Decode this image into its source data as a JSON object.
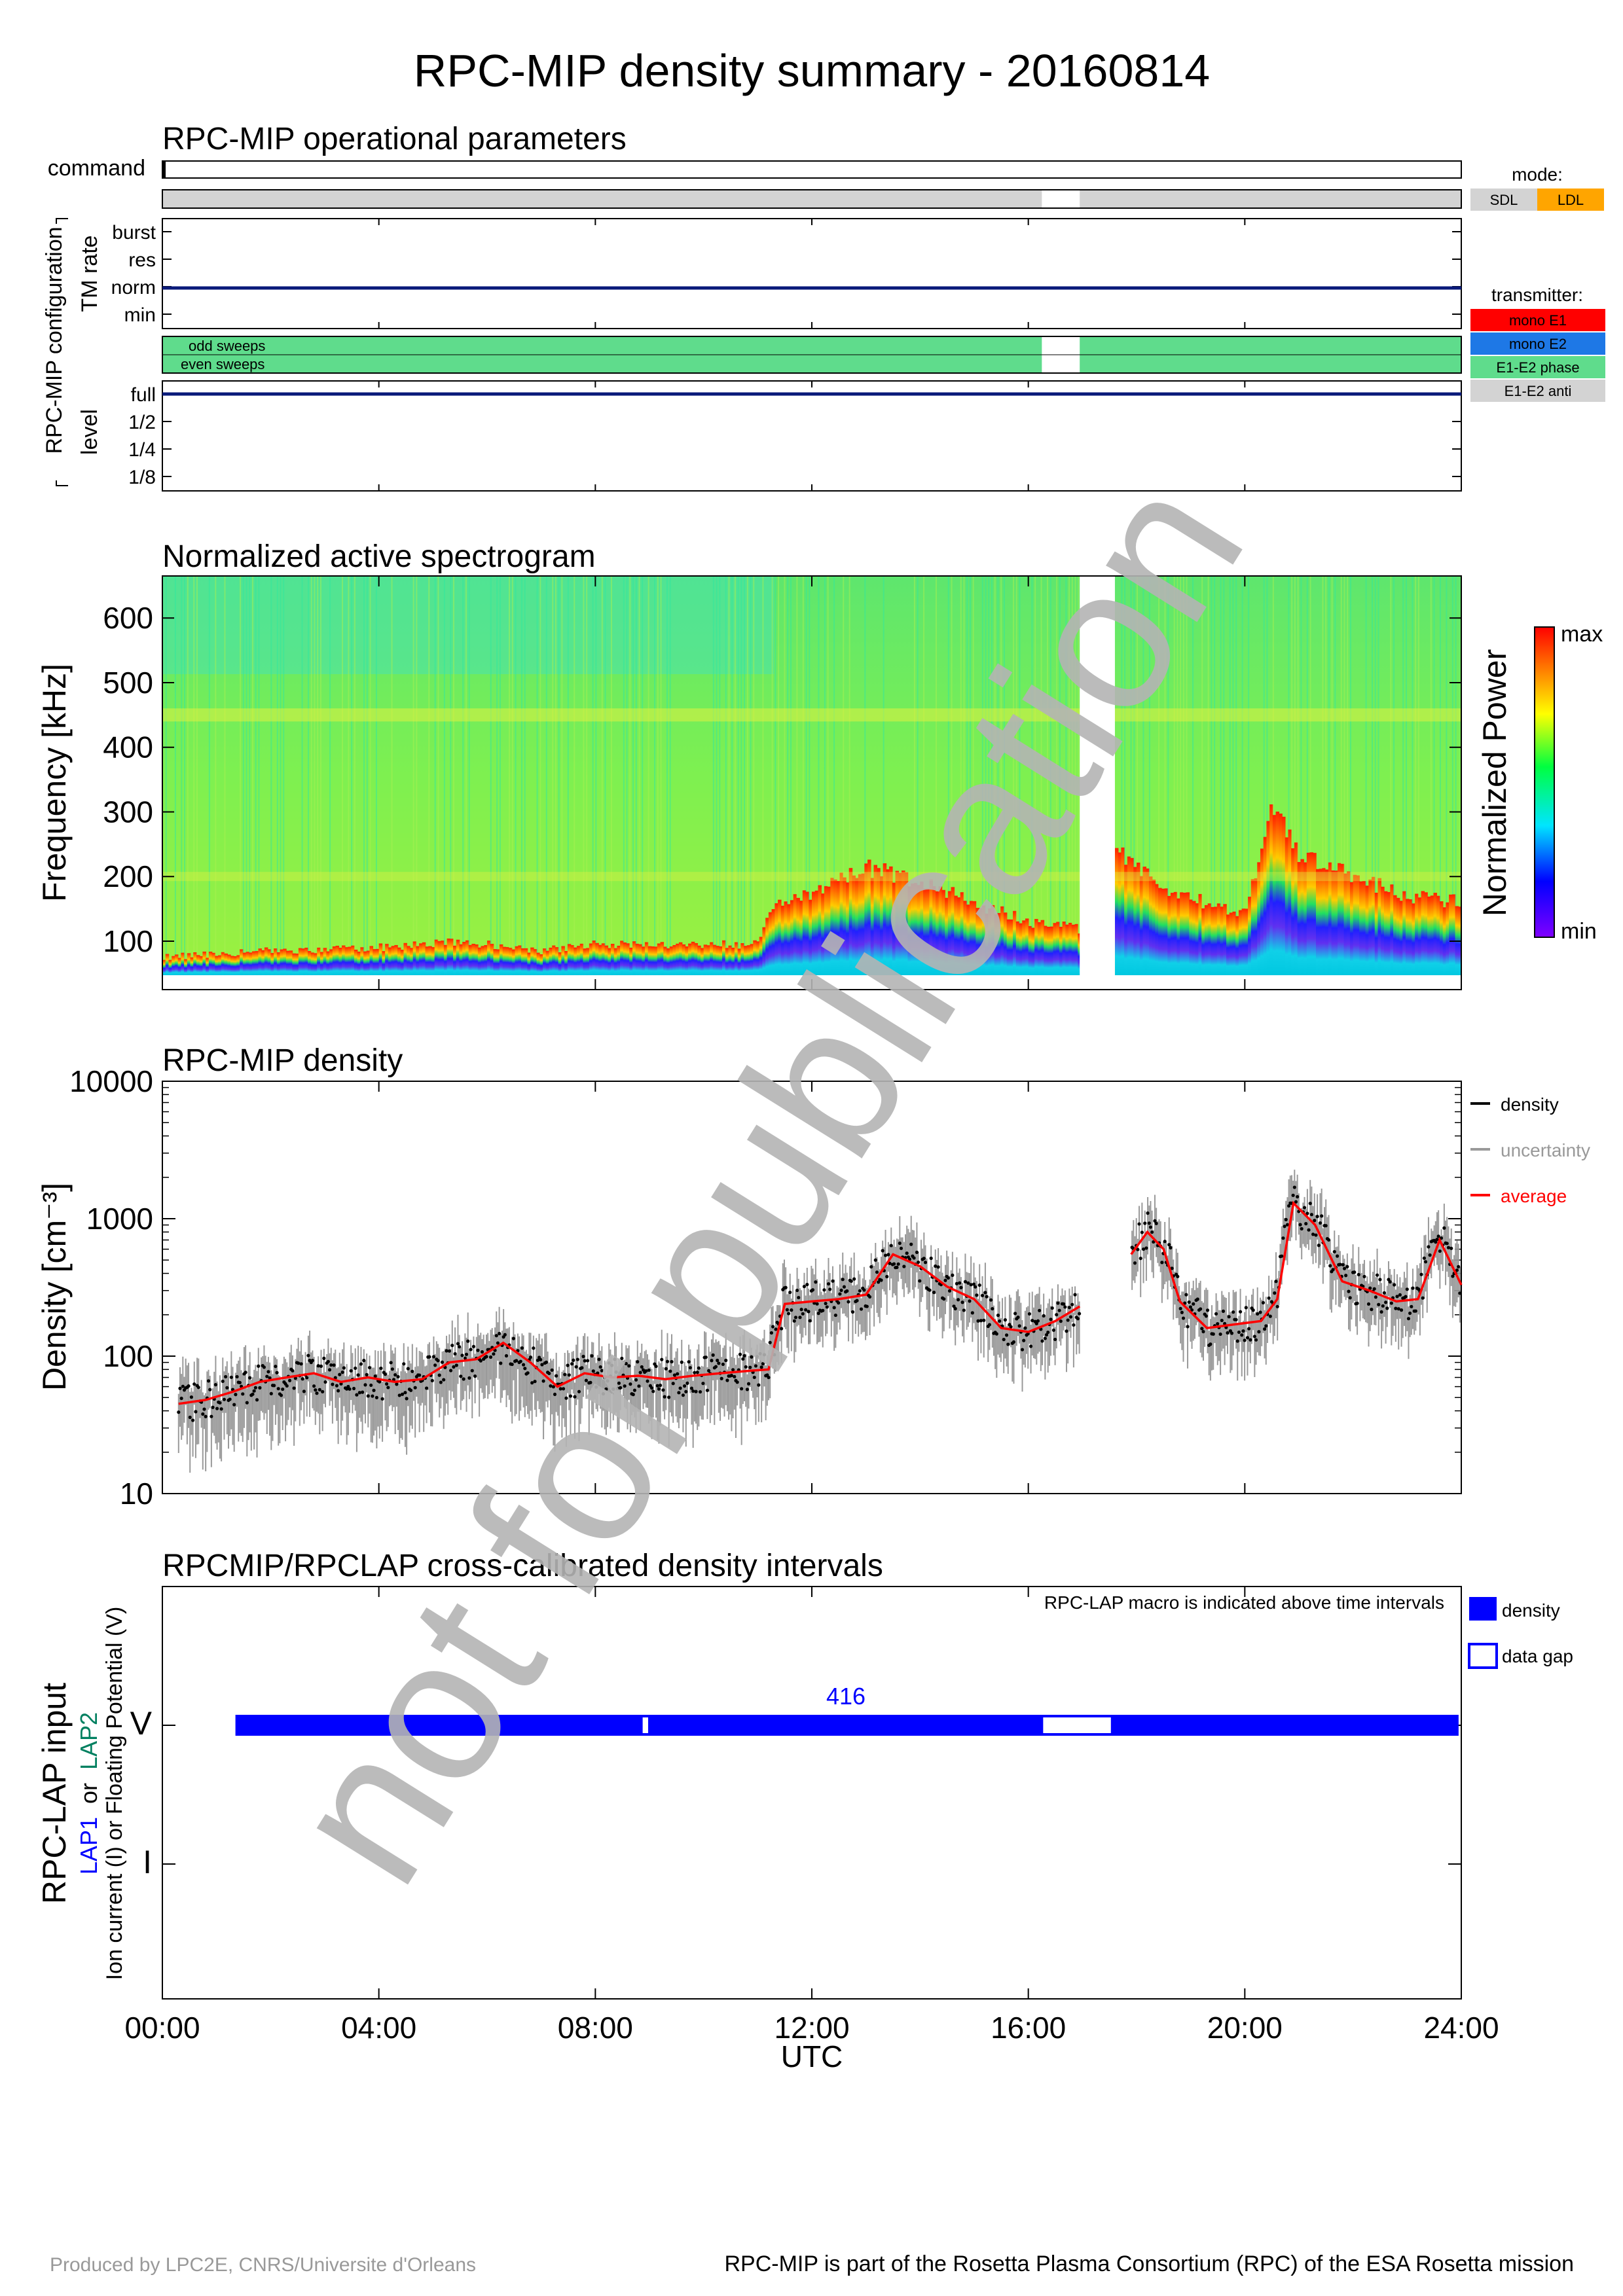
{
  "title": "RPC-MIP density summary - 20160814",
  "colors": {
    "sdl": "#d3d3d3",
    "ldl": "#ffa500",
    "mono_e1": "#ff0000",
    "mono_e2": "#1e78e6",
    "e1e2_phase": "#5fdc8c",
    "e1e2_anti": "#d3d3d3",
    "tm_line": "#0a1a7a",
    "density": "#000000",
    "uncertainty": "#999999",
    "average": "#ff0000",
    "lap_interval": "#0000ff",
    "lap_label": "#0000ff",
    "lap2_label": "#008060",
    "watermark": "#b4b4b4"
  },
  "panel1": {
    "title": "RPC-MIP operational parameters",
    "command_label": "command",
    "config_label": "RPC-MIP configuration",
    "tm_rate_label": "TM rate",
    "tm_rate_levels": [
      "burst",
      "res",
      "norm",
      "min"
    ],
    "tm_rate_value": "norm",
    "level_label": "level",
    "level_levels": [
      "full",
      "1/2",
      "1/4",
      "1/8"
    ],
    "level_value": "full",
    "mode_legend_title": "mode:",
    "mode_legend": [
      "SDL",
      "LDL"
    ],
    "sweep_labels": [
      "odd sweeps",
      "even sweeps"
    ],
    "transmitter_legend_title": "transmitter:",
    "transmitter_legend": [
      "mono E1",
      "mono E2",
      "E1-E2 phase",
      "E1-E2 anti"
    ],
    "mode_intervals": [
      {
        "start": 0.0,
        "end": 16.25,
        "mode": "SDL"
      },
      {
        "start": 16.95,
        "end": 24.0,
        "mode": "SDL"
      }
    ],
    "sweep_intervals": [
      {
        "start": 0.0,
        "end": 16.25,
        "transmitter": "E1-E2 phase"
      },
      {
        "start": 16.95,
        "end": 24.0,
        "transmitter": "E1-E2 phase"
      }
    ]
  },
  "panel2": {
    "title": "Normalized active spectrogram",
    "ylabel": "Frequency [kHz]",
    "ylim": [
      25,
      665
    ],
    "yticks": [
      100,
      200,
      300,
      400,
      500,
      600
    ],
    "colorbar_label": "Normalized Power",
    "colorbar_max": "max",
    "colorbar_min": "min",
    "data_gap_hours": [
      16.95,
      17.6
    ],
    "ridge_profile_hours": [
      0,
      2,
      4,
      5.5,
      7,
      8,
      11,
      11.3,
      12,
      13,
      14,
      16,
      16.95,
      17.6,
      18.5,
      20,
      20.5,
      21,
      22,
      23,
      24
    ],
    "ridge_profile_khz": [
      75,
      85,
      90,
      100,
      85,
      95,
      95,
      160,
      170,
      215,
      190,
      130,
      120,
      240,
      180,
      140,
      320,
      230,
      200,
      170,
      160
    ]
  },
  "chart_data": {
    "type": "scatter",
    "title": "RPC-MIP density",
    "xlabel": "UTC",
    "ylabel": "Density [cm⁻³]",
    "yscale": "log",
    "xlim": [
      0,
      24
    ],
    "ylim": [
      10,
      10000
    ],
    "xtick_labels": [
      "00:00",
      "04:00",
      "08:00",
      "12:00",
      "16:00",
      "20:00",
      "24:00"
    ],
    "ytick_labels": [
      "10",
      "100",
      "1000",
      "10000"
    ],
    "legend": [
      "density",
      "uncertainty",
      "average"
    ],
    "legend_position": "right",
    "x": [
      0.3,
      0.8,
      1.3,
      1.8,
      2.3,
      2.8,
      3.3,
      3.8,
      4.3,
      4.8,
      5.3,
      5.8,
      6.3,
      6.8,
      7.3,
      7.8,
      8.3,
      8.8,
      9.3,
      9.8,
      10.3,
      10.8,
      11.2,
      11.5,
      12.0,
      12.5,
      13.0,
      13.5,
      14.0,
      14.5,
      15.0,
      15.5,
      16.0,
      16.5,
      16.95,
      17.6,
      17.9,
      18.2,
      18.5,
      18.8,
      19.3,
      19.8,
      20.3,
      20.6,
      20.9,
      21.3,
      21.8,
      22.3,
      22.8,
      23.2,
      23.6,
      24.0
    ],
    "y": [
      45,
      48,
      55,
      65,
      70,
      75,
      65,
      70,
      65,
      68,
      90,
      95,
      125,
      90,
      60,
      75,
      70,
      72,
      68,
      72,
      75,
      78,
      80,
      240,
      250,
      260,
      280,
      550,
      450,
      320,
      260,
      160,
      150,
      180,
      230,
      null,
      550,
      800,
      600,
      250,
      160,
      170,
      180,
      260,
      1300,
      900,
      350,
      300,
      250,
      260,
      700,
      330
    ]
  },
  "panel4": {
    "title": "RPCMIP/RPCLAP cross-calibrated density intervals",
    "ylabel_main": "RPC-LAP input",
    "ylabel_lap1": "LAP1",
    "ylabel_or": "or",
    "ylabel_lap2": "LAP2",
    "ylabel_sub": "Ion current (I) or Floating Potential (V)",
    "y_categories": [
      "V",
      "I"
    ],
    "note": "RPC-LAP macro is indicated above time intervals",
    "legend": [
      "density",
      "data gap"
    ],
    "macro_label": "416",
    "intervals": [
      {
        "start": 1.35,
        "end": 8.85,
        "type": "density"
      },
      {
        "start": 8.85,
        "end": 9.0,
        "type": "data gap"
      },
      {
        "start": 9.0,
        "end": 16.25,
        "type": "density"
      },
      {
        "start": 16.25,
        "end": 17.55,
        "type": "data gap"
      },
      {
        "start": 17.55,
        "end": 23.95,
        "type": "density"
      }
    ],
    "xlabel": "UTC",
    "xtick_labels": [
      "00:00",
      "04:00",
      "08:00",
      "12:00",
      "16:00",
      "20:00",
      "24:00"
    ]
  },
  "watermark": "not for publication",
  "footer_left": "Produced by LPC2E, CNRS/Universite d'Orleans",
  "footer_right": "RPC-MIP is part of the Rosetta Plasma Consortium (RPC) of the ESA Rosetta mission"
}
